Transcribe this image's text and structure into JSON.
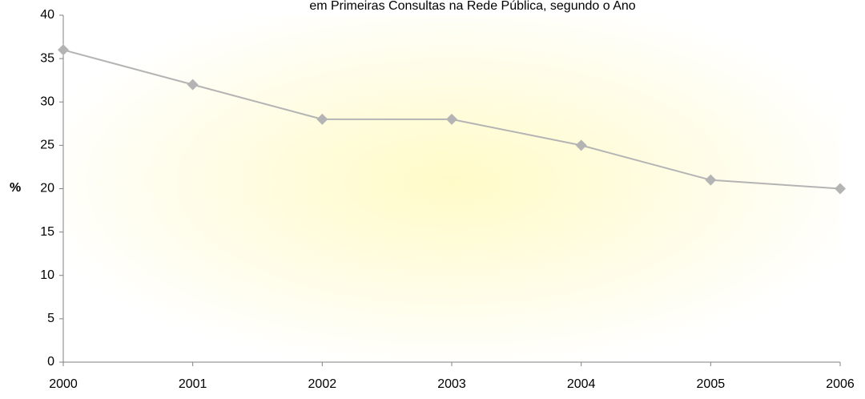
{
  "chart_data": {
    "type": "line",
    "title": "em Primeiras Consultas na Rede Pública, segundo o Ano",
    "y_label": "%",
    "x": [
      2000,
      2001,
      2002,
      2003,
      2004,
      2005,
      2006
    ],
    "xlim": [
      2000,
      2006
    ],
    "xticks": [
      2000,
      2001,
      2002,
      2003,
      2004,
      2005,
      2006
    ],
    "series": [
      {
        "color": "#b4b4b4",
        "values": [
          36,
          32,
          28,
          28,
          25,
          21,
          20
        ]
      }
    ],
    "ylim": [
      0,
      40
    ],
    "yticks": [
      0,
      5,
      10,
      15,
      20,
      25,
      30,
      35,
      40
    ],
    "grid": false
  }
}
